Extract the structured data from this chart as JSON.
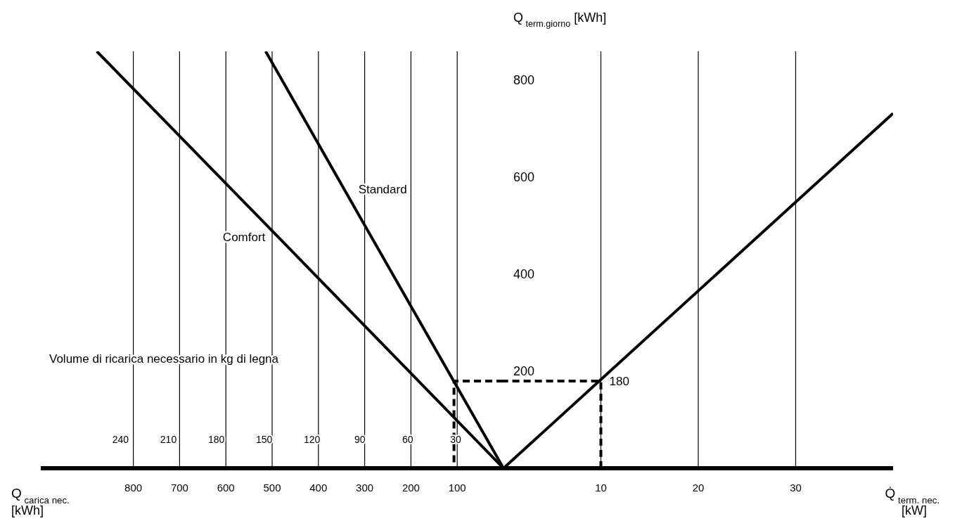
{
  "chart_data": [
    {
      "type": "line",
      "xlabel": "Q$_{carica nec.}$ [kWh]",
      "x2label": "Volume di ricarica necessario in kg di legna",
      "xlim": [
        1000,
        0
      ],
      "xticks": [
        800,
        700,
        600,
        500,
        400,
        300,
        200,
        100
      ],
      "x2lim": [
        290,
        0
      ],
      "x2ticks": [
        240,
        210,
        180,
        150,
        120,
        90,
        60,
        30
      ],
      "ylim": [
        0,
        860
      ],
      "tick_labels": "x",
      "grid": "x",
      "marker": "none",
      "series": [
        {
          "name": "Comfort",
          "color": "#000000",
          "x": [
            0,
            485,
            879
          ],
          "values": [
            0,
            475,
            860
          ]
        },
        {
          "name": "Standard",
          "color": "#000000",
          "x": [
            0,
            344,
            514
          ],
          "values": [
            0,
            575,
            860
          ]
        },
        {
          "color": "#000000",
          "line_style": "dashed",
          "x": [
            0,
            107,
            107
          ],
          "values": [
            180,
            180,
            0
          ]
        }
      ]
    },
    {
      "type": "line",
      "xlabel": "Q̇$_{term. nec.}$ [kW]",
      "ylabel": "Q$_{term.giorno}$ [kWh]",
      "xlim": [
        0,
        40
      ],
      "xticks": [
        10,
        20,
        30
      ],
      "ylim": [
        0,
        860
      ],
      "yticks": [
        200,
        400,
        600,
        800
      ],
      "grid": true,
      "marker": "none",
      "annotations": [
        {
          "text": "180",
          "x": 10,
          "y": 180
        }
      ],
      "series": [
        {
          "color": "#000000",
          "x": [
            0,
            40
          ],
          "values": [
            0,
            732
          ]
        },
        {
          "color": "#000000",
          "line_style": "dashed",
          "x": [
            10,
            10,
            0
          ],
          "values": [
            0,
            180,
            180
          ]
        }
      ]
    }
  ]
}
